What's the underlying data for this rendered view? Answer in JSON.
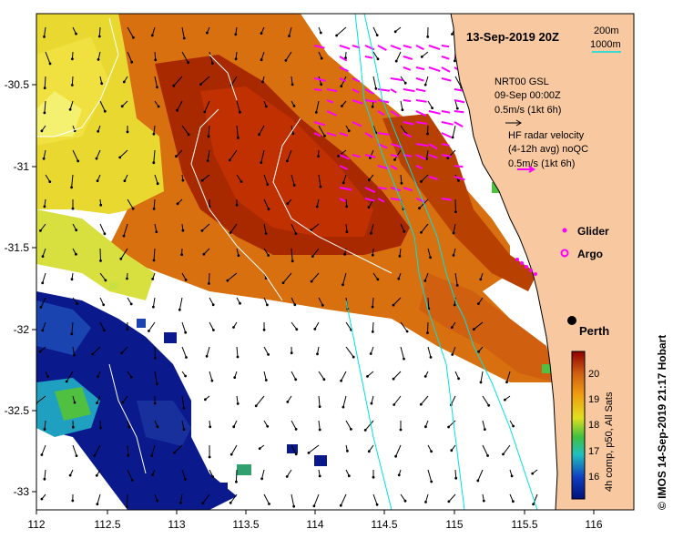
{
  "map": {
    "date_title": "13-Sep-2019 20Z",
    "lon_ticks": [
      "112",
      "112.5",
      "113",
      "113.5",
      "114",
      "114.5",
      "115",
      "115.5",
      "116"
    ],
    "lat_ticks": [
      "-30.5",
      "-31",
      "-31.5",
      "-32",
      "-32.5",
      "-33"
    ],
    "isobath_legend": {
      "shallow": "200m",
      "deep": "1000m"
    },
    "model_vectors": {
      "line1": "NRT00 GSL",
      "line2": "09-Sep 00:00Z",
      "scale": "0.5m/s (1kt 6h)"
    },
    "radar_vectors": {
      "line1": "HF radar velocity",
      "line2": "(4-12h avg) noQC",
      "scale": "0.5m/s (1kt 6h)"
    },
    "markers": {
      "glider": "Glider",
      "argo": "Argo",
      "city": "Perth"
    },
    "colorbar": {
      "ticks": [
        "20",
        "19",
        "18",
        "17",
        "16"
      ],
      "label": "4h comp, p50, All Sats"
    },
    "credit": "© IMOS 14-Sep-2019 21:17 Hobart",
    "colors": {
      "land": "#f8c8a0",
      "isobath": "#00e0e0",
      "radar_vectors": "#ff00ff",
      "sst_warm": "#b83000",
      "sst_cold": "#001880"
    }
  }
}
